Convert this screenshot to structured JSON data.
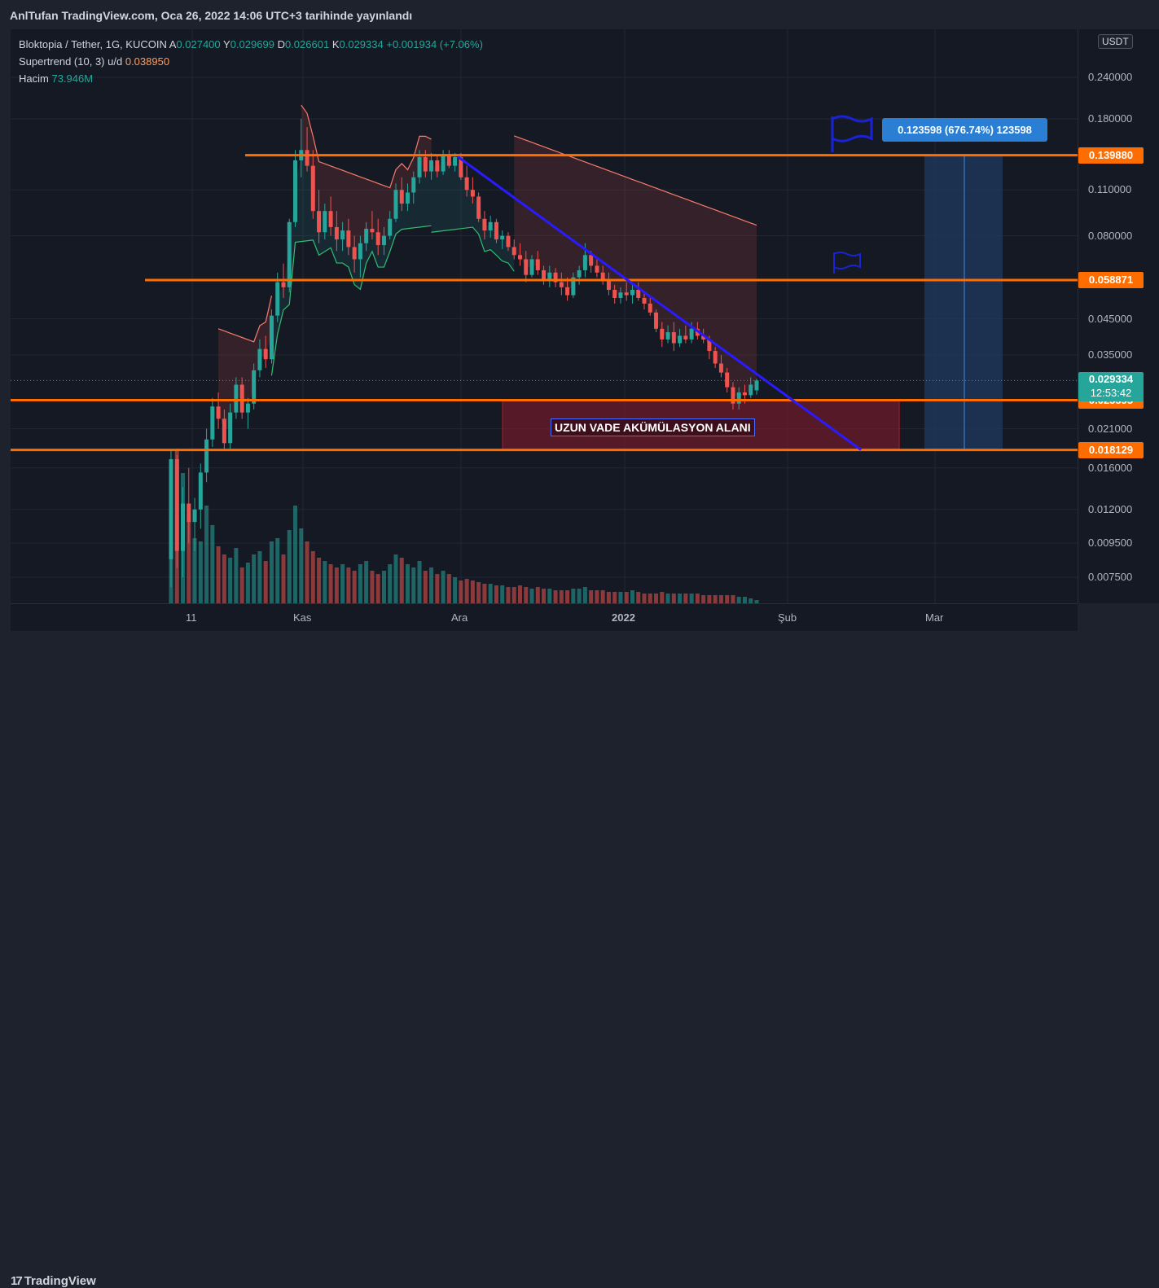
{
  "header": {
    "publish_text": "AnlTufan TradingView.com, Oca 26, 2022 14:06 UTC+3 tarihinde yayınlandı"
  },
  "legend": {
    "title": "Bloktopia / Tether, 1G, KUCOIN",
    "open_key": "A",
    "open": "0.027400",
    "high_key": "Y",
    "high": "0.029699",
    "low_key": "D",
    "low": "0.026601",
    "close_key": "K",
    "close": "0.029334",
    "change": "+0.001934 (+7.06%)",
    "supertrend_name": "Supertrend (10, 3)",
    "supertrend_mode": "u/d",
    "supertrend_value": "0.038950",
    "volume_name": "Hacim",
    "volume_value": "73.946M"
  },
  "currency_badge": "USDT",
  "annotations": {
    "zone_label": "UZUN VADE AKÜMÜLASYON ALANI",
    "target_label": "0.123598 (676.74%) 123598"
  },
  "branding": {
    "logo_mark": "17",
    "logo_text": "TradingView"
  },
  "colors": {
    "up": "#26a69a",
    "down": "#ef5350",
    "level_line": "#ff6d00",
    "trendline": "#2a1bff",
    "current_price": "#26a69a",
    "target_box": "#2a7fd4",
    "zone": "#8b1a2a"
  },
  "chart_data": {
    "type": "candlestick",
    "symbol": "Bloktopia / Tether",
    "interval": "1G",
    "exchange": "KUCOIN",
    "y_scale": "log",
    "ylim": [
      0.0065,
      0.33
    ],
    "y_ticks": [
      "0.240000",
      "0.180000",
      "0.110000",
      "0.080000",
      "0.045000",
      "0.035000",
      "0.021000",
      "0.016000",
      "0.012000",
      "0.009500",
      "0.007500"
    ],
    "x_ticks": [
      "11",
      "Kas",
      "Ara",
      "2022",
      "Şub",
      "Mar"
    ],
    "horizontal_levels": [
      "0.139880",
      "0.058871",
      "0.025595",
      "0.018129"
    ],
    "current_price": "0.029334",
    "countdown": "12:53:42",
    "candles": [
      {
        "o": 0.0085,
        "h": 0.018,
        "l": 0.007,
        "c": 0.017
      },
      {
        "o": 0.017,
        "h": 0.0175,
        "l": 0.008,
        "c": 0.009
      },
      {
        "o": 0.009,
        "h": 0.014,
        "l": 0.0075,
        "c": 0.0125
      },
      {
        "o": 0.0125,
        "h": 0.016,
        "l": 0.0095,
        "c": 0.011
      },
      {
        "o": 0.011,
        "h": 0.013,
        "l": 0.009,
        "c": 0.012
      },
      {
        "o": 0.012,
        "h": 0.0165,
        "l": 0.0105,
        "c": 0.0155
      },
      {
        "o": 0.0155,
        "h": 0.021,
        "l": 0.0145,
        "c": 0.0195
      },
      {
        "o": 0.0195,
        "h": 0.026,
        "l": 0.0185,
        "c": 0.0245
      },
      {
        "o": 0.0245,
        "h": 0.027,
        "l": 0.021,
        "c": 0.0225
      },
      {
        "o": 0.0225,
        "h": 0.024,
        "l": 0.018,
        "c": 0.019
      },
      {
        "o": 0.019,
        "h": 0.025,
        "l": 0.0182,
        "c": 0.0235
      },
      {
        "o": 0.0235,
        "h": 0.03,
        "l": 0.0225,
        "c": 0.0285
      },
      {
        "o": 0.0285,
        "h": 0.03,
        "l": 0.0225,
        "c": 0.0235
      },
      {
        "o": 0.0235,
        "h": 0.026,
        "l": 0.021,
        "c": 0.025
      },
      {
        "o": 0.025,
        "h": 0.033,
        "l": 0.024,
        "c": 0.0315
      },
      {
        "o": 0.0315,
        "h": 0.039,
        "l": 0.03,
        "c": 0.0365
      },
      {
        "o": 0.0365,
        "h": 0.04,
        "l": 0.032,
        "c": 0.034
      },
      {
        "o": 0.034,
        "h": 0.048,
        "l": 0.033,
        "c": 0.046
      },
      {
        "o": 0.046,
        "h": 0.062,
        "l": 0.044,
        "c": 0.058
      },
      {
        "o": 0.058,
        "h": 0.066,
        "l": 0.052,
        "c": 0.056
      },
      {
        "o": 0.056,
        "h": 0.09,
        "l": 0.054,
        "c": 0.088
      },
      {
        "o": 0.088,
        "h": 0.145,
        "l": 0.085,
        "c": 0.135
      },
      {
        "o": 0.135,
        "h": 0.18,
        "l": 0.12,
        "c": 0.145
      },
      {
        "o": 0.145,
        "h": 0.17,
        "l": 0.125,
        "c": 0.13
      },
      {
        "o": 0.13,
        "h": 0.145,
        "l": 0.09,
        "c": 0.095
      },
      {
        "o": 0.095,
        "h": 0.11,
        "l": 0.076,
        "c": 0.082
      },
      {
        "o": 0.082,
        "h": 0.1,
        "l": 0.078,
        "c": 0.095
      },
      {
        "o": 0.095,
        "h": 0.105,
        "l": 0.08,
        "c": 0.085
      },
      {
        "o": 0.085,
        "h": 0.095,
        "l": 0.072,
        "c": 0.078
      },
      {
        "o": 0.078,
        "h": 0.088,
        "l": 0.072,
        "c": 0.083
      },
      {
        "o": 0.083,
        "h": 0.09,
        "l": 0.07,
        "c": 0.074
      },
      {
        "o": 0.074,
        "h": 0.08,
        "l": 0.062,
        "c": 0.068
      },
      {
        "o": 0.068,
        "h": 0.08,
        "l": 0.06,
        "c": 0.076
      },
      {
        "o": 0.076,
        "h": 0.088,
        "l": 0.072,
        "c": 0.084
      },
      {
        "o": 0.084,
        "h": 0.095,
        "l": 0.078,
        "c": 0.082
      },
      {
        "o": 0.082,
        "h": 0.09,
        "l": 0.07,
        "c": 0.075
      },
      {
        "o": 0.075,
        "h": 0.085,
        "l": 0.07,
        "c": 0.08
      },
      {
        "o": 0.08,
        "h": 0.095,
        "l": 0.078,
        "c": 0.09
      },
      {
        "o": 0.09,
        "h": 0.115,
        "l": 0.088,
        "c": 0.11
      },
      {
        "o": 0.11,
        "h": 0.12,
        "l": 0.095,
        "c": 0.1
      },
      {
        "o": 0.1,
        "h": 0.115,
        "l": 0.095,
        "c": 0.108
      },
      {
        "o": 0.108,
        "h": 0.125,
        "l": 0.1,
        "c": 0.12
      },
      {
        "o": 0.12,
        "h": 0.145,
        "l": 0.115,
        "c": 0.138
      },
      {
        "o": 0.138,
        "h": 0.145,
        "l": 0.12,
        "c": 0.125
      },
      {
        "o": 0.125,
        "h": 0.142,
        "l": 0.118,
        "c": 0.135
      },
      {
        "o": 0.135,
        "h": 0.14,
        "l": 0.12,
        "c": 0.125
      },
      {
        "o": 0.125,
        "h": 0.145,
        "l": 0.122,
        "c": 0.14
      },
      {
        "o": 0.14,
        "h": 0.145,
        "l": 0.128,
        "c": 0.13
      },
      {
        "o": 0.13,
        "h": 0.142,
        "l": 0.125,
        "c": 0.138
      },
      {
        "o": 0.138,
        "h": 0.142,
        "l": 0.118,
        "c": 0.12
      },
      {
        "o": 0.12,
        "h": 0.13,
        "l": 0.105,
        "c": 0.11
      },
      {
        "o": 0.11,
        "h": 0.12,
        "l": 0.1,
        "c": 0.105
      },
      {
        "o": 0.105,
        "h": 0.108,
        "l": 0.088,
        "c": 0.09
      },
      {
        "o": 0.09,
        "h": 0.095,
        "l": 0.078,
        "c": 0.083
      },
      {
        "o": 0.083,
        "h": 0.092,
        "l": 0.079,
        "c": 0.088
      },
      {
        "o": 0.088,
        "h": 0.09,
        "l": 0.076,
        "c": 0.078
      },
      {
        "o": 0.078,
        "h": 0.083,
        "l": 0.073,
        "c": 0.08
      },
      {
        "o": 0.08,
        "h": 0.082,
        "l": 0.072,
        "c": 0.074
      },
      {
        "o": 0.074,
        "h": 0.078,
        "l": 0.068,
        "c": 0.07
      },
      {
        "o": 0.07,
        "h": 0.076,
        "l": 0.065,
        "c": 0.068
      },
      {
        "o": 0.068,
        "h": 0.072,
        "l": 0.058,
        "c": 0.061
      },
      {
        "o": 0.061,
        "h": 0.07,
        "l": 0.06,
        "c": 0.068
      },
      {
        "o": 0.068,
        "h": 0.072,
        "l": 0.061,
        "c": 0.063
      },
      {
        "o": 0.063,
        "h": 0.065,
        "l": 0.057,
        "c": 0.059
      },
      {
        "o": 0.059,
        "h": 0.065,
        "l": 0.056,
        "c": 0.062
      },
      {
        "o": 0.062,
        "h": 0.064,
        "l": 0.056,
        "c": 0.058
      },
      {
        "o": 0.058,
        "h": 0.062,
        "l": 0.053,
        "c": 0.056
      },
      {
        "o": 0.056,
        "h": 0.06,
        "l": 0.051,
        "c": 0.053
      },
      {
        "o": 0.053,
        "h": 0.062,
        "l": 0.052,
        "c": 0.06
      },
      {
        "o": 0.06,
        "h": 0.065,
        "l": 0.057,
        "c": 0.063
      },
      {
        "o": 0.063,
        "h": 0.076,
        "l": 0.06,
        "c": 0.07
      },
      {
        "o": 0.07,
        "h": 0.072,
        "l": 0.062,
        "c": 0.065
      },
      {
        "o": 0.065,
        "h": 0.068,
        "l": 0.06,
        "c": 0.062
      },
      {
        "o": 0.062,
        "h": 0.065,
        "l": 0.057,
        "c": 0.059
      },
      {
        "o": 0.059,
        "h": 0.062,
        "l": 0.053,
        "c": 0.055
      },
      {
        "o": 0.055,
        "h": 0.057,
        "l": 0.05,
        "c": 0.052
      },
      {
        "o": 0.052,
        "h": 0.056,
        "l": 0.05,
        "c": 0.054
      },
      {
        "o": 0.054,
        "h": 0.058,
        "l": 0.051,
        "c": 0.053
      },
      {
        "o": 0.053,
        "h": 0.057,
        "l": 0.05,
        "c": 0.055
      },
      {
        "o": 0.055,
        "h": 0.058,
        "l": 0.051,
        "c": 0.052
      },
      {
        "o": 0.052,
        "h": 0.054,
        "l": 0.048,
        "c": 0.05
      },
      {
        "o": 0.05,
        "h": 0.052,
        "l": 0.046,
        "c": 0.047
      },
      {
        "o": 0.047,
        "h": 0.048,
        "l": 0.041,
        "c": 0.042
      },
      {
        "o": 0.042,
        "h": 0.044,
        "l": 0.037,
        "c": 0.039
      },
      {
        "o": 0.039,
        "h": 0.043,
        "l": 0.038,
        "c": 0.041
      },
      {
        "o": 0.041,
        "h": 0.044,
        "l": 0.036,
        "c": 0.038
      },
      {
        "o": 0.038,
        "h": 0.042,
        "l": 0.037,
        "c": 0.04
      },
      {
        "o": 0.04,
        "h": 0.043,
        "l": 0.038,
        "c": 0.039
      },
      {
        "o": 0.039,
        "h": 0.044,
        "l": 0.038,
        "c": 0.042
      },
      {
        "o": 0.042,
        "h": 0.044,
        "l": 0.039,
        "c": 0.04
      },
      {
        "o": 0.04,
        "h": 0.042,
        "l": 0.038,
        "c": 0.039
      },
      {
        "o": 0.039,
        "h": 0.04,
        "l": 0.034,
        "c": 0.036
      },
      {
        "o": 0.036,
        "h": 0.037,
        "l": 0.032,
        "c": 0.033
      },
      {
        "o": 0.033,
        "h": 0.035,
        "l": 0.03,
        "c": 0.031
      },
      {
        "o": 0.031,
        "h": 0.032,
        "l": 0.027,
        "c": 0.028
      },
      {
        "o": 0.028,
        "h": 0.029,
        "l": 0.024,
        "c": 0.025
      },
      {
        "o": 0.025,
        "h": 0.028,
        "l": 0.024,
        "c": 0.027
      },
      {
        "o": 0.027,
        "h": 0.0285,
        "l": 0.025,
        "c": 0.0265
      },
      {
        "o": 0.0265,
        "h": 0.03,
        "l": 0.026,
        "c": 0.0285
      },
      {
        "o": 0.0274,
        "h": 0.029699,
        "l": 0.026601,
        "c": 0.029334
      }
    ],
    "volume": [
      42,
      95,
      80,
      55,
      40,
      38,
      60,
      48,
      35,
      30,
      28,
      34,
      22,
      25,
      30,
      32,
      26,
      38,
      40,
      30,
      45,
      60,
      46,
      38,
      32,
      28,
      26,
      24,
      22,
      24,
      22,
      20,
      24,
      26,
      20,
      18,
      20,
      24,
      30,
      28,
      24,
      22,
      26,
      20,
      22,
      18,
      20,
      18,
      16,
      14,
      15,
      14,
      13,
      12,
      12,
      11,
      11,
      10,
      10,
      11,
      10,
      9,
      10,
      9,
      9,
      8,
      8,
      8,
      9,
      9,
      10,
      8,
      8,
      8,
      7,
      7,
      7,
      7,
      8,
      7,
      6,
      6,
      6,
      7,
      6,
      6,
      6,
      6,
      6,
      6,
      5,
      5,
      5,
      5,
      5,
      5,
      4,
      4,
      3,
      2
    ],
    "volume_up": [
      1,
      0,
      1,
      0,
      1,
      1,
      1,
      1,
      0,
      0,
      1,
      1,
      0,
      1,
      1,
      1,
      0,
      1,
      1,
      0,
      1,
      1,
      1,
      0,
      0,
      0,
      1,
      0,
      0,
      1,
      0,
      0,
      1,
      1,
      0,
      0,
      1,
      1,
      1,
      0,
      1,
      1,
      1,
      0,
      1,
      0,
      1,
      0,
      1,
      0,
      0,
      0,
      0,
      0,
      1,
      0,
      1,
      0,
      0,
      0,
      0,
      1,
      0,
      0,
      1,
      0,
      0,
      0,
      1,
      1,
      1,
      0,
      0,
      0,
      0,
      0,
      1,
      0,
      1,
      0,
      0,
      0,
      0,
      0,
      1,
      0,
      1,
      0,
      1,
      0,
      0,
      0,
      0,
      0,
      0,
      0,
      1,
      1,
      1,
      1
    ],
    "supertrend": [
      {
        "from": 8,
        "to": 17,
        "dir": "down",
        "v": 0.042
      },
      {
        "from": 17,
        "to": 44,
        "dir": "up",
        "v": 0.075
      },
      {
        "from": 22,
        "to": 44,
        "dir": "down",
        "v": 0.14
      },
      {
        "from": 44,
        "to": 58,
        "dir": "up",
        "v": 0.082
      },
      {
        "from": 58,
        "to": 100,
        "dir": "down",
        "v": 0.16
      }
    ]
  }
}
